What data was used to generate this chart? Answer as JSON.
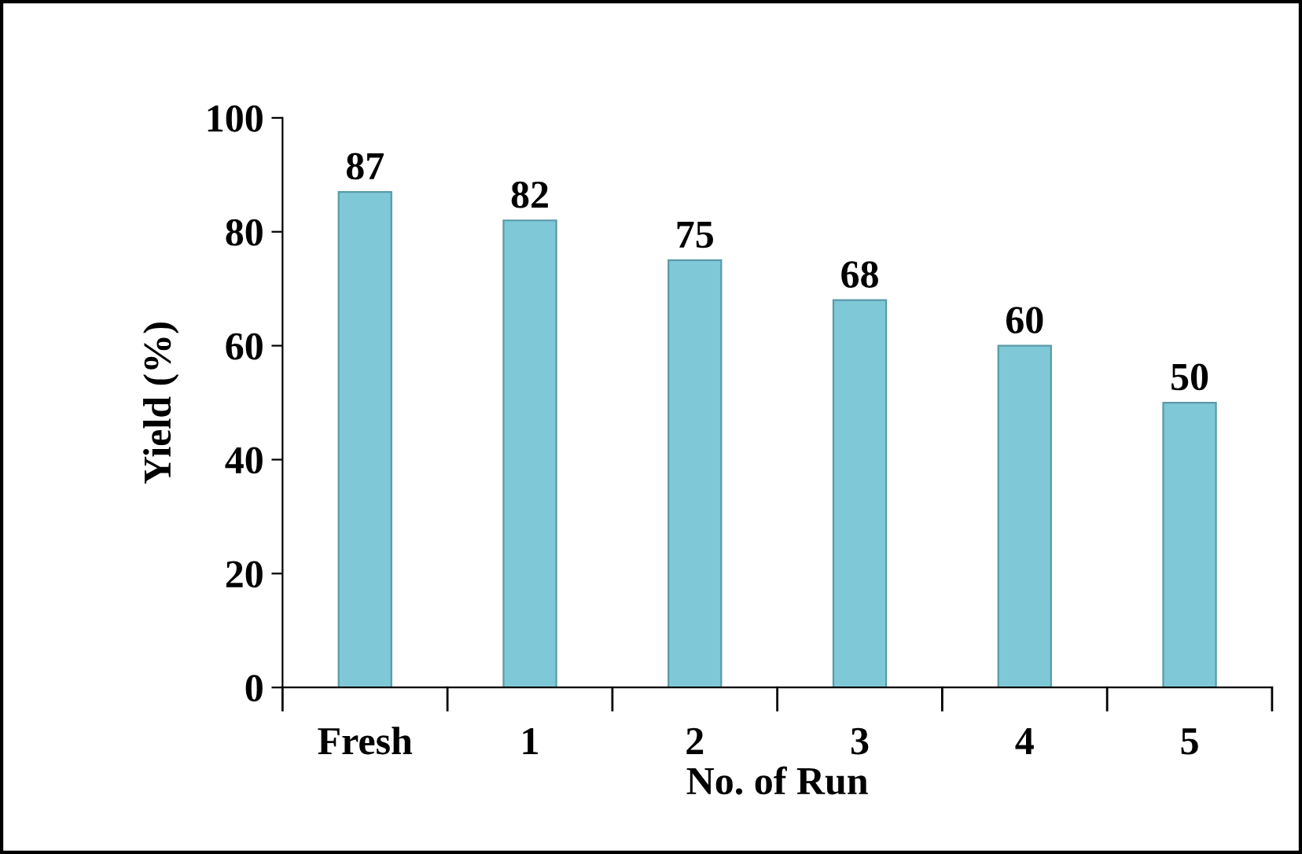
{
  "chart_data": {
    "type": "bar",
    "xlabel": "No. of Run",
    "ylabel": "Yield (%)",
    "categories": [
      "Fresh",
      "1",
      "2",
      "3",
      "4",
      "5"
    ],
    "values": [
      87,
      82,
      75,
      68,
      60,
      50
    ],
    "color": "#7ec8d8",
    "ylim": [
      0,
      100
    ],
    "yticks": [
      0,
      20,
      40,
      60,
      80,
      100
    ],
    "grid": false,
    "data_labels": true
  }
}
